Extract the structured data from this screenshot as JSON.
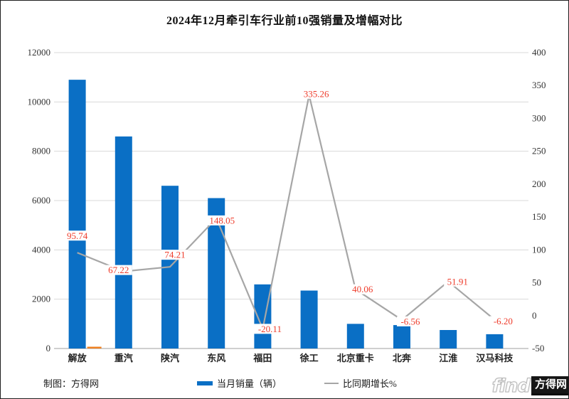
{
  "window": {
    "title": "2024年12月牵引车行业前10强销量及增幅对比"
  },
  "footer": {
    "credit": "制图：方得网"
  },
  "watermark": {
    "latin": "find",
    "cjk": "方得网"
  },
  "legend": {
    "bar_label": "当月销量（辆）",
    "line_label": "比同期增长%"
  },
  "colors": {
    "bar_blue": "#0a6fc5",
    "line_gray": "#a6a6a6",
    "grid": "#d9d9d9",
    "baseline": "#bfbfbf",
    "value_label_red": "#ee3b2a",
    "axis_text": "#333333",
    "anomaly_orange": "#ee8122"
  },
  "chart_data": {
    "type": "bar",
    "subtype": "combo-bar-line",
    "title": "2024年12月牵引车行业前10强销量及增幅对比",
    "categories": [
      "解放",
      "重汽",
      "陕汽",
      "东风",
      "福田",
      "徐工",
      "北京重卡",
      "北奔",
      "江淮",
      "汉马科技"
    ],
    "series": [
      {
        "name": "当月销量（辆）",
        "type": "bar",
        "axis": "left",
        "color": "#0a6fc5",
        "values": [
          10900,
          8600,
          6600,
          6100,
          2600,
          2350,
          1000,
          950,
          750,
          580
        ]
      },
      {
        "name": "比同期增长%",
        "type": "line",
        "axis": "right",
        "color": "#a6a6a6",
        "label_color": "#ee3b2a",
        "values": [
          95.74,
          67.22,
          74.21,
          148.05,
          -20.11,
          335.26,
          40.06,
          -6.56,
          51.91,
          -6.2
        ],
        "value_labels": [
          "95.74",
          "67.22",
          "74.21",
          "148.05",
          "-20.11",
          "335.26",
          "40.06",
          "-6.56",
          "51.91",
          "-6.20"
        ]
      }
    ],
    "left_axis": {
      "min": 0,
      "max": 12000,
      "step": 2000,
      "ticks": [
        0,
        2000,
        4000,
        6000,
        8000,
        10000,
        12000
      ]
    },
    "right_axis": {
      "min": -50,
      "max": 400,
      "step": 50,
      "ticks": [
        -50,
        0,
        50,
        100,
        150,
        200,
        250,
        300,
        350,
        400
      ]
    },
    "grid": "horizontal-left-ticks",
    "legend_position": "bottom",
    "anomaly_marker": {
      "category": "解放",
      "color": "#ee8122",
      "note": "tiny orange bar at baseline beside first bar"
    }
  }
}
